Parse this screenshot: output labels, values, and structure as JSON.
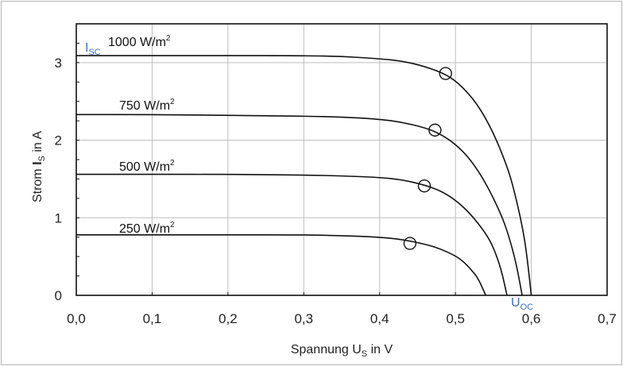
{
  "chart_data": {
    "type": "line",
    "xlabel": {
      "main": "Spannung U",
      "sub": "S",
      "rest": " in V"
    },
    "ylabel": {
      "main": "Strom ",
      "bold": "I",
      "sub": "S",
      "rest": " in A"
    },
    "xlim": [
      0,
      0.7
    ],
    "ylim": [
      0,
      3.5
    ],
    "x_ticks": [
      0,
      0.1,
      0.2,
      0.3,
      0.4,
      0.5,
      0.6,
      0.7
    ],
    "x_tick_labels": [
      "0,0",
      "0,1",
      "0,2",
      "0,3",
      "0,4",
      "0,5",
      "0,6",
      "0,7"
    ],
    "y_ticks": [
      0,
      1,
      2,
      3
    ],
    "y_tick_labels": [
      "0",
      "1",
      "2",
      "3"
    ],
    "grid": true,
    "series": [
      {
        "name": "1000 W/m²",
        "label_main": "1000 W/m",
        "label_sup": "2",
        "points": [
          [
            0,
            3.09
          ],
          [
            0.1,
            3.09
          ],
          [
            0.2,
            3.09
          ],
          [
            0.3,
            3.09
          ],
          [
            0.35,
            3.08
          ],
          [
            0.4,
            3.05
          ],
          [
            0.43,
            3.02
          ],
          [
            0.46,
            2.95
          ],
          [
            0.49,
            2.84
          ],
          [
            0.51,
            2.68
          ],
          [
            0.53,
            2.45
          ],
          [
            0.55,
            2.1
          ],
          [
            0.57,
            1.62
          ],
          [
            0.58,
            1.25
          ],
          [
            0.59,
            0.8
          ],
          [
            0.595,
            0.45
          ],
          [
            0.6,
            0
          ]
        ],
        "mpp": [
          0.487,
          2.86
        ]
      },
      {
        "name": "750 W/m²",
        "label_main": "750 W/m",
        "label_sup": "2",
        "points": [
          [
            0,
            2.33
          ],
          [
            0.1,
            2.33
          ],
          [
            0.2,
            2.32
          ],
          [
            0.3,
            2.31
          ],
          [
            0.35,
            2.3
          ],
          [
            0.4,
            2.27
          ],
          [
            0.43,
            2.23
          ],
          [
            0.46,
            2.16
          ],
          [
            0.48,
            2.08
          ],
          [
            0.5,
            1.95
          ],
          [
            0.52,
            1.75
          ],
          [
            0.54,
            1.45
          ],
          [
            0.56,
            1.05
          ],
          [
            0.57,
            0.78
          ],
          [
            0.58,
            0.42
          ],
          [
            0.588,
            0
          ]
        ],
        "mpp": [
          0.473,
          2.13
        ]
      },
      {
        "name": "500 W/m²",
        "label_main": "500 W/m",
        "label_sup": "2",
        "points": [
          [
            0,
            1.56
          ],
          [
            0.1,
            1.56
          ],
          [
            0.2,
            1.56
          ],
          [
            0.3,
            1.55
          ],
          [
            0.35,
            1.54
          ],
          [
            0.4,
            1.52
          ],
          [
            0.43,
            1.49
          ],
          [
            0.46,
            1.42
          ],
          [
            0.48,
            1.35
          ],
          [
            0.5,
            1.23
          ],
          [
            0.52,
            1.05
          ],
          [
            0.54,
            0.8
          ],
          [
            0.55,
            0.62
          ],
          [
            0.56,
            0.35
          ],
          [
            0.568,
            0
          ]
        ],
        "mpp": [
          0.459,
          1.41
        ]
      },
      {
        "name": "250 W/m²",
        "label_main": "250 W/m",
        "label_sup": "2",
        "points": [
          [
            0,
            0.78
          ],
          [
            0.1,
            0.78
          ],
          [
            0.2,
            0.78
          ],
          [
            0.3,
            0.78
          ],
          [
            0.35,
            0.77
          ],
          [
            0.4,
            0.75
          ],
          [
            0.43,
            0.72
          ],
          [
            0.46,
            0.66
          ],
          [
            0.48,
            0.6
          ],
          [
            0.5,
            0.51
          ],
          [
            0.51,
            0.44
          ],
          [
            0.52,
            0.34
          ],
          [
            0.53,
            0.22
          ],
          [
            0.54,
            0
          ]
        ],
        "mpp": [
          0.44,
          0.67
        ]
      }
    ],
    "annotations": [
      {
        "id": "isc",
        "main": "I",
        "sub": "SC"
      },
      {
        "id": "uoc",
        "main": "U",
        "sub": "OC"
      }
    ],
    "colors": {
      "curve": "#111111",
      "grid": "#bdbdbd",
      "annotation": "#3a6fc4"
    }
  }
}
